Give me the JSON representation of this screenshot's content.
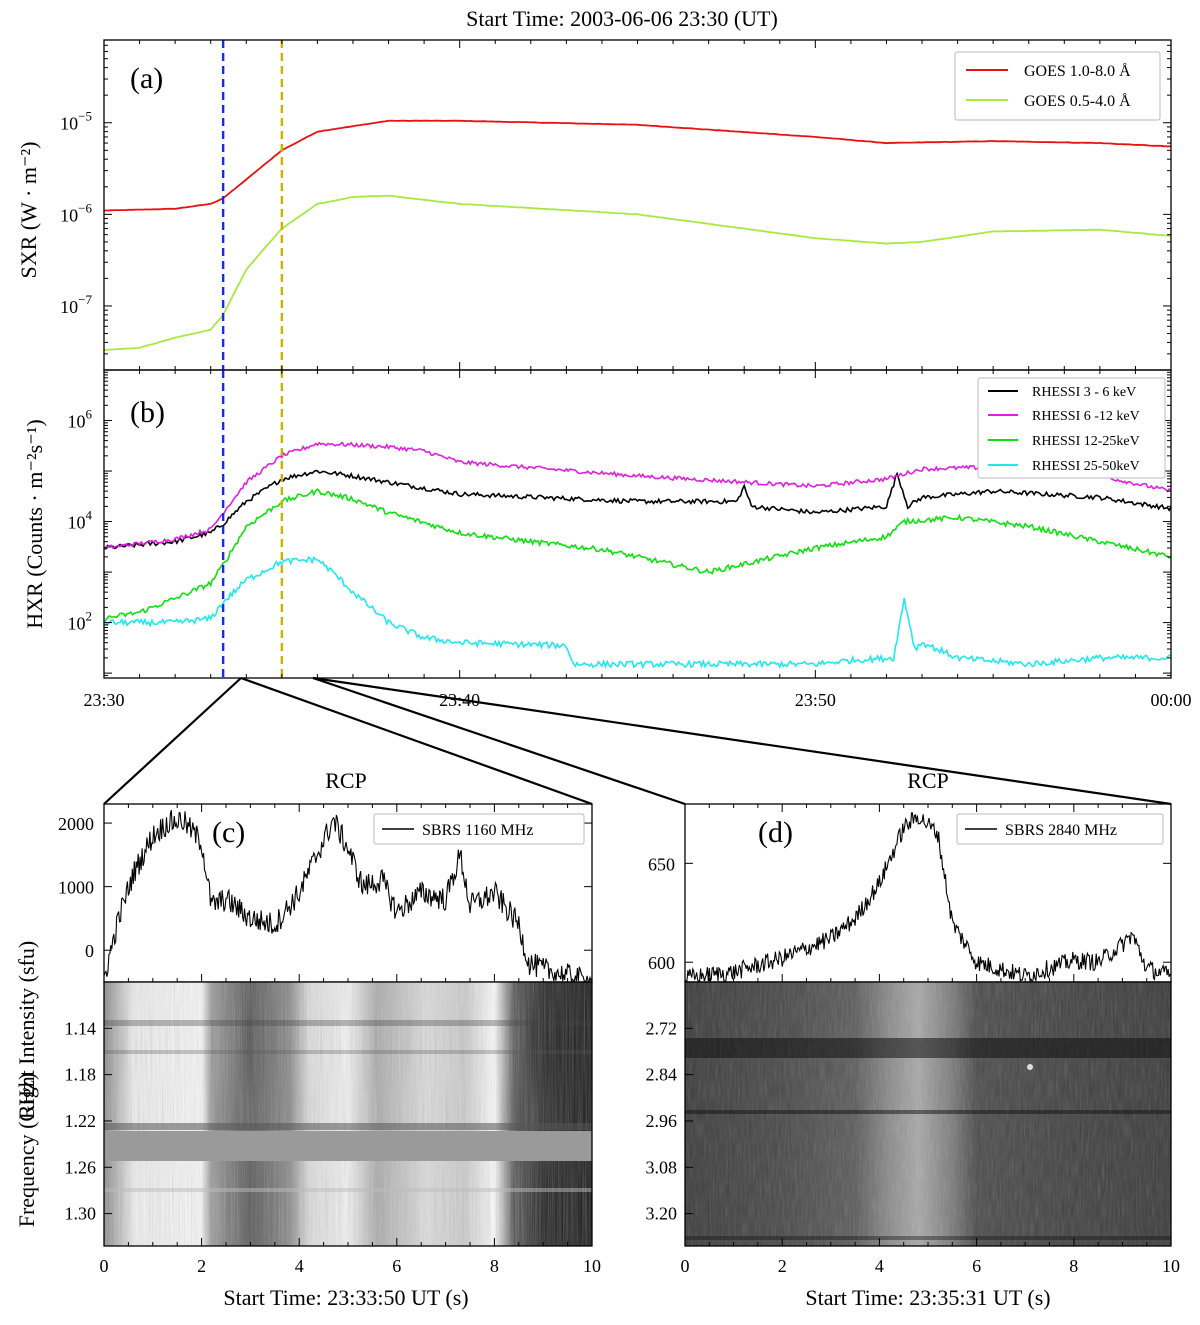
{
  "title": "Start Time:  2003-06-06 23:30 (UT)",
  "chart_data": [
    {
      "id": "a",
      "type": "line",
      "panel_label": "(a)",
      "ylabel": "SXR  (W · m⁻²)",
      "yscale": "log",
      "ylim": [
        2e-08,
        8e-05
      ],
      "yticks": [
        {
          "v": 1e-07,
          "base": "10",
          "exp": "−7"
        },
        {
          "v": 1e-06,
          "base": "10",
          "exp": "−6"
        },
        {
          "v": 1e-05,
          "base": "10",
          "exp": "−5"
        }
      ],
      "xlim": [
        0,
        30
      ],
      "markers": [
        {
          "x": 3.35,
          "color": "#1030e0"
        },
        {
          "x": 5.0,
          "color": "#c8b400"
        }
      ],
      "series": [
        {
          "name": "GOES 1.0-8.0 Å",
          "color": "#e81010",
          "x": [
            0,
            2,
            3,
            3.35,
            4,
            5,
            6,
            8,
            10,
            15,
            20,
            22,
            25,
            28,
            30
          ],
          "y": [
            1.1e-06,
            1.15e-06,
            1.3e-06,
            1.5e-06,
            2.4e-06,
            5e-06,
            8e-06,
            1.05e-05,
            1.05e-05,
            9.5e-06,
            7e-06,
            6e-06,
            6.3e-06,
            6e-06,
            5.5e-06
          ]
        },
        {
          "name": "GOES 0.5-4.0 Å",
          "color": "#a8e840",
          "x": [
            0,
            1,
            2,
            3,
            3.35,
            4,
            5,
            6,
            7,
            8,
            10,
            15,
            20,
            22,
            23,
            25,
            28,
            30
          ],
          "y": [
            3.3e-08,
            3.5e-08,
            4.5e-08,
            5.5e-08,
            8e-08,
            2.5e-07,
            7e-07,
            1.3e-06,
            1.55e-06,
            1.6e-06,
            1.3e-06,
            1e-06,
            5.5e-07,
            4.8e-07,
            5e-07,
            6.5e-07,
            6.8e-07,
            5.8e-07
          ]
        }
      ]
    },
    {
      "id": "b",
      "type": "line",
      "panel_label": "(b)",
      "ylabel": "HXR (Counts · m⁻²s⁻¹)",
      "yscale": "log",
      "ylim": [
        8,
        10000000.0
      ],
      "yticks": [
        {
          "v": 100,
          "base": "10",
          "exp": "2"
        },
        {
          "v": 10000,
          "base": "10",
          "exp": "4"
        },
        {
          "v": 1000000,
          "base": "10",
          "exp": "6"
        }
      ],
      "xlim": [
        0,
        30
      ],
      "xticks": [
        {
          "v": 0,
          "label": "23:30"
        },
        {
          "v": 10,
          "label": "23:40"
        },
        {
          "v": 20,
          "label": "23:50"
        },
        {
          "v": 30,
          "label": "00:00"
        }
      ],
      "markers": [
        {
          "x": 3.35,
          "color": "#1030e0"
        },
        {
          "x": 5.0,
          "color": "#c8b400"
        }
      ],
      "series": [
        {
          "name": "RHESSI 3 - 6  keV",
          "color": "#000000",
          "x": [
            0,
            2,
            3,
            3.35,
            4,
            5,
            6,
            7,
            8,
            10,
            15,
            17.8,
            18,
            18.2,
            20,
            22,
            22.3,
            22.6,
            23,
            25,
            28,
            30
          ],
          "y": [
            3000,
            4000,
            6000,
            9000,
            25000,
            70000,
            100000,
            80000,
            60000,
            35000,
            25000,
            25000,
            50000,
            20000,
            15000,
            20000,
            90000,
            20000,
            30000,
            40000,
            30000,
            18000
          ]
        },
        {
          "name": "RHESSI 6 -12 keV",
          "color": "#e020e0",
          "x": [
            0,
            2,
            3,
            3.35,
            4,
            5,
            6,
            7,
            8,
            9,
            10,
            15,
            20,
            22,
            23,
            25,
            28,
            30
          ],
          "y": [
            3000,
            4500,
            7000,
            15000,
            60000,
            200000,
            350000,
            330000,
            300000,
            250000,
            150000,
            80000,
            50000,
            70000,
            110000,
            120000,
            80000,
            40000
          ]
        },
        {
          "name": "RHESSI 12-25keV",
          "color": "#10e010",
          "x": [
            0,
            1,
            2,
            3,
            3.35,
            4,
            5,
            6,
            7,
            8,
            10,
            12,
            14,
            17,
            20,
            22,
            22.5,
            24,
            26,
            28,
            30
          ],
          "y": [
            120,
            160,
            300,
            600,
            1400,
            8000,
            25000,
            40000,
            28000,
            15000,
            6000,
            4000,
            2800,
            1000,
            3000,
            5000,
            10000,
            12000,
            8000,
            4000,
            2000
          ]
        },
        {
          "name": "RHESSI 25-50keV",
          "color": "#20e8f0",
          "x": [
            0,
            2,
            3,
            3.35,
            4,
            5,
            6,
            6.5,
            7,
            7.5,
            8,
            9,
            10,
            13,
            13.2,
            15,
            17,
            20,
            21,
            22.2,
            22.5,
            22.8,
            23,
            24,
            26,
            28,
            30
          ],
          "y": [
            100,
            100,
            120,
            250,
            700,
            1600,
            1800,
            900,
            400,
            200,
            100,
            50,
            40,
            35,
            15,
            15,
            15,
            15,
            18,
            20,
            300,
            30,
            40,
            20,
            15,
            20,
            20
          ]
        }
      ]
    },
    {
      "id": "c",
      "type": "line",
      "panel_label": "(c)",
      "top_label": "RCP",
      "ylabel": "Right Intensity (sfu)",
      "ylim": [
        -500,
        2300
      ],
      "yticks": [
        0,
        1000,
        2000
      ],
      "xlim": [
        0,
        10
      ],
      "xticks": [
        0,
        2,
        4,
        6,
        8,
        10
      ],
      "series": [
        {
          "name": "SBRS 1160 MHz",
          "color": "#000000",
          "x": [
            0,
            0.3,
            0.6,
            1,
            1.3,
            1.6,
            2,
            2.2,
            2.5,
            3,
            3.5,
            4,
            4.3,
            4.7,
            5,
            5.3,
            5.7,
            6,
            6.5,
            7,
            7.3,
            7.5,
            8,
            8.5,
            8.7,
            9,
            9.5,
            10
          ],
          "y": [
            -450,
            500,
            1200,
            1800,
            2000,
            2050,
            1700,
            700,
            800,
            500,
            400,
            900,
            1400,
            2050,
            1600,
            1000,
            1100,
            600,
            900,
            800,
            1500,
            700,
            900,
            400,
            -200,
            -300,
            -400,
            -500
          ]
        }
      ],
      "heatmap": {
        "ylabel": "Frequency (GHz)",
        "ytick_labels": [
          "1.14",
          "1.18",
          "1.22",
          "1.26",
          "1.30"
        ],
        "xlabel": "Start Time: 23:33:50 UT (s)"
      }
    },
    {
      "id": "d",
      "type": "line",
      "panel_label": "(d)",
      "top_label": "RCP",
      "ylim": [
        590,
        680
      ],
      "yticks": [
        600,
        650
      ],
      "xlim": [
        0,
        10
      ],
      "xticks": [
        0,
        2,
        4,
        6,
        8,
        10
      ],
      "series": [
        {
          "name": "SBRS 2840 MHz",
          "color": "#000000",
          "x": [
            0,
            1,
            2,
            3,
            3.5,
            4,
            4.5,
            4.8,
            5.2,
            5.5,
            6,
            7,
            8,
            8.5,
            9,
            9.2,
            9.5,
            10
          ],
          "y": [
            592,
            595,
            602,
            612,
            622,
            640,
            668,
            674,
            665,
            620,
            600,
            593,
            601,
            600,
            609,
            614,
            597,
            593
          ]
        }
      ],
      "heatmap": {
        "ytick_labels": [
          "2.72",
          "2.84",
          "2.96",
          "3.08",
          "3.20"
        ],
        "xlabel": "Start Time: 23:35:31 UT (s)"
      }
    }
  ]
}
